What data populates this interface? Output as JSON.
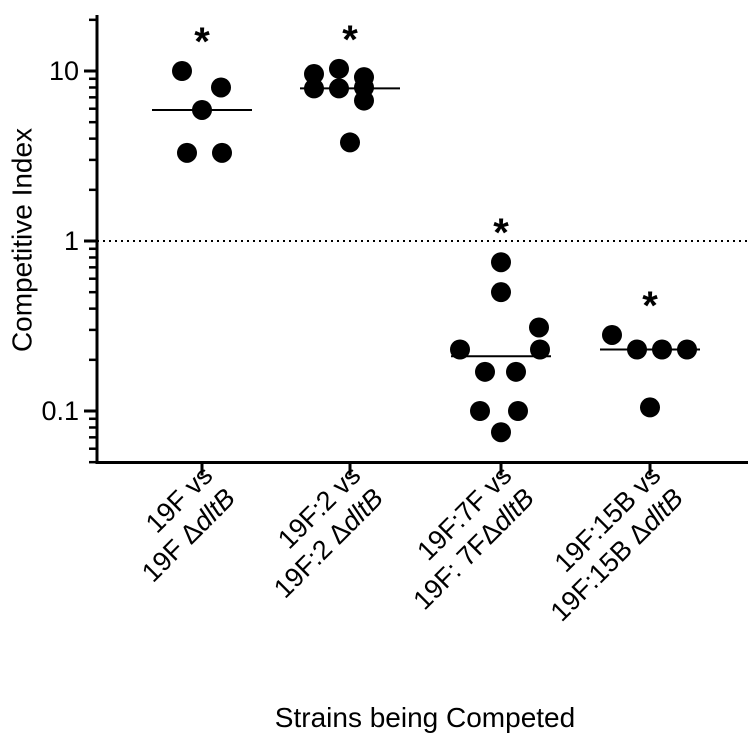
{
  "chart_data": {
    "type": "scatter",
    "title": "",
    "xlabel": "Strains being Competed",
    "ylabel": "Competitive Index",
    "yscale": "log",
    "ylim": [
      0.05,
      20
    ],
    "y_ticks": [
      {
        "value": 0.1,
        "label": "0.1"
      },
      {
        "value": 1,
        "label": "1"
      },
      {
        "value": 10,
        "label": "10"
      }
    ],
    "reference_line": {
      "value": 1,
      "style": "dotted"
    },
    "significance_marker": "*",
    "groups": [
      {
        "label_line1": "19F vs",
        "label_line2_prefix": "19F Δ",
        "label_line2_italic": "dltB",
        "values": [
          10.0,
          5.9,
          8.0,
          3.3,
          3.3
        ],
        "median": 5.9,
        "significant": true
      },
      {
        "label_line1": "19F:2 vs",
        "label_line2_prefix": "19F:2 Δ",
        "label_line2_italic": "dltB",
        "values": [
          9.6,
          10.3,
          8.0,
          7.9,
          7.9,
          9.2,
          6.7,
          3.8
        ],
        "median": 7.9,
        "significant": true
      },
      {
        "label_line1": "19F:7F vs",
        "label_line2_prefix": "19F: 7FΔ",
        "label_line2_italic": "dltB",
        "values": [
          0.75,
          0.5,
          0.31,
          0.23,
          0.23,
          0.17,
          0.17,
          0.1,
          0.1,
          0.075
        ],
        "median": 0.21,
        "significant": true
      },
      {
        "label_line1": "19F:15B vs",
        "label_line2_prefix": "19F:15B Δ",
        "label_line2_italic": "dltB",
        "values": [
          0.28,
          0.23,
          0.23,
          0.23,
          0.105
        ],
        "median": 0.23,
        "significant": true
      }
    ]
  }
}
